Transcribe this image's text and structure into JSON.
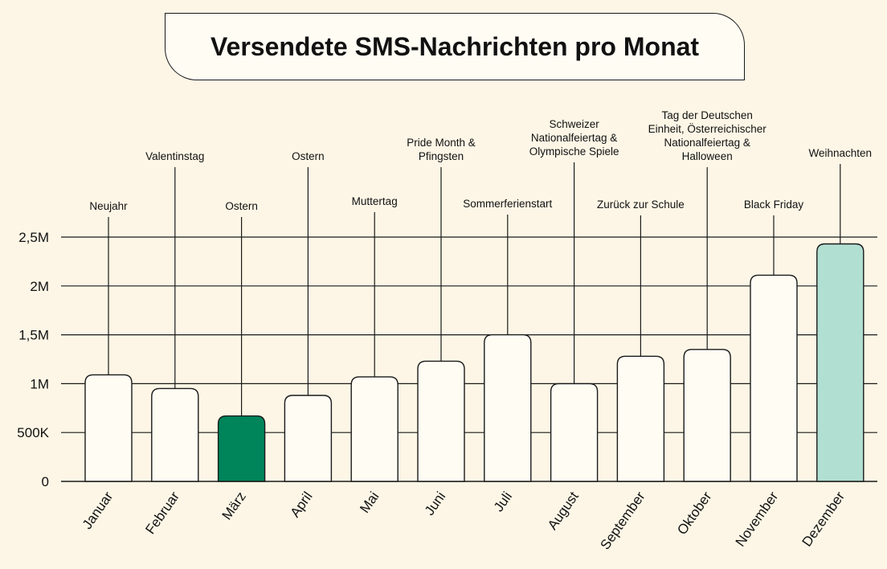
{
  "chart_data": {
    "type": "bar",
    "title": "Versendete SMS-Nachrichten pro Monat",
    "xlabel": "",
    "ylabel": "",
    "ylim": [
      0,
      2500000
    ],
    "y_ticks": [
      {
        "value": 0,
        "label": "0"
      },
      {
        "value": 500000,
        "label": "500K"
      },
      {
        "value": 1000000,
        "label": "1M"
      },
      {
        "value": 1500000,
        "label": "1,5M"
      },
      {
        "value": 2000000,
        "label": "2M"
      },
      {
        "value": 2500000,
        "label": "2,5M"
      }
    ],
    "categories": [
      "Januar",
      "Februar",
      "März",
      "April",
      "Mai",
      "Juni",
      "Juli",
      "August",
      "September",
      "Oktober",
      "November",
      "Dezember"
    ],
    "values": [
      1090000,
      950000,
      670000,
      880000,
      1070000,
      1230000,
      1500000,
      1000000,
      1280000,
      1350000,
      2110000,
      2430000
    ],
    "annotations": [
      [
        "Neujahr"
      ],
      [
        "Valentinstag"
      ],
      [
        "Ostern"
      ],
      [
        "Ostern"
      ],
      [
        "Muttertag"
      ],
      [
        "Pride Month &",
        "Pfingsten"
      ],
      [
        "Sommerferienstart"
      ],
      [
        "Schweizer",
        "Nationalfeiertag &",
        "Olympische Spiele"
      ],
      [
        "Zurück zur Schule"
      ],
      [
        "Tag der Deutschen",
        "Einheit, Österreichischer",
        "Nationalfeiertag &",
        "Halloween"
      ],
      [
        "Black Friday"
      ],
      [
        "Weihnachten"
      ]
    ],
    "colors": {
      "default": "#fffcf4",
      "lowest": "#00845a",
      "highest": "#b1dfd2",
      "stroke": "#1a1a1a",
      "background": "#fdf6e6"
    },
    "grid": true,
    "legend": "none"
  }
}
